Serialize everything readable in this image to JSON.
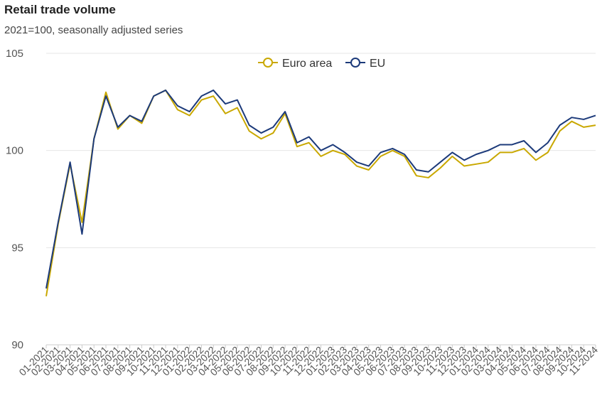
{
  "header": {
    "title": "Retail trade volume",
    "subtitle": "2021=100, seasonally adjusted series"
  },
  "chart_data": {
    "type": "line",
    "title": "Retail trade volume",
    "subtitle": "2021=100, seasonally adjusted series",
    "xlabel": "",
    "ylabel": "",
    "ylim": [
      90,
      105
    ],
    "yticks": [
      90,
      95,
      100,
      105
    ],
    "grid": true,
    "legend_position": "top-center",
    "categories": [
      "01-2021",
      "02-2021",
      "03-2021",
      "04-2021",
      "05-2021",
      "06-2021",
      "07-2021",
      "08-2021",
      "09-2021",
      "10-2021",
      "11-2021",
      "12-2021",
      "01-2022",
      "02-2022",
      "03-2022",
      "04-2022",
      "05-2022",
      "06-2022",
      "07-2022",
      "08-2022",
      "09-2022",
      "10-2022",
      "11-2022",
      "12-2022",
      "01-2023",
      "02-2023",
      "03-2023",
      "04-2023",
      "05-2023",
      "06-2023",
      "07-2023",
      "08-2023",
      "09-2023",
      "10-2023",
      "11-2023",
      "12-2023",
      "01-2024",
      "02-2024",
      "03-2024",
      "04-2024",
      "05-2024",
      "06-2024",
      "07-2024",
      "08-2024",
      "09-2024",
      "10-2024",
      "11-2024"
    ],
    "series": [
      {
        "name": "Euro area",
        "color": "#c9a800",
        "values": [
          92.5,
          96.2,
          99.3,
          96.3,
          100.6,
          103.0,
          101.1,
          101.8,
          101.4,
          102.8,
          103.1,
          102.1,
          101.8,
          102.6,
          102.8,
          101.9,
          102.2,
          101.0,
          100.6,
          100.9,
          101.9,
          100.2,
          100.4,
          99.7,
          100.0,
          99.8,
          99.2,
          99.0,
          99.7,
          100.0,
          99.7,
          98.7,
          98.6,
          99.1,
          99.7,
          99.2,
          99.3,
          99.4,
          99.9,
          99.9,
          100.1,
          99.5,
          99.9,
          101.0,
          101.5,
          101.2,
          101.3
        ]
      },
      {
        "name": "EU",
        "color": "#1c3a7a",
        "values": [
          92.9,
          96.3,
          99.4,
          95.7,
          100.6,
          102.8,
          101.2,
          101.8,
          101.5,
          102.8,
          103.1,
          102.3,
          102.0,
          102.8,
          103.1,
          102.4,
          102.6,
          101.3,
          100.9,
          101.2,
          102.0,
          100.4,
          100.7,
          100.0,
          100.3,
          99.9,
          99.4,
          99.2,
          99.9,
          100.1,
          99.8,
          99.0,
          98.9,
          99.4,
          99.9,
          99.5,
          99.8,
          100.0,
          100.3,
          100.3,
          100.5,
          99.9,
          100.4,
          101.3,
          101.7,
          101.6,
          101.8
        ]
      }
    ]
  }
}
